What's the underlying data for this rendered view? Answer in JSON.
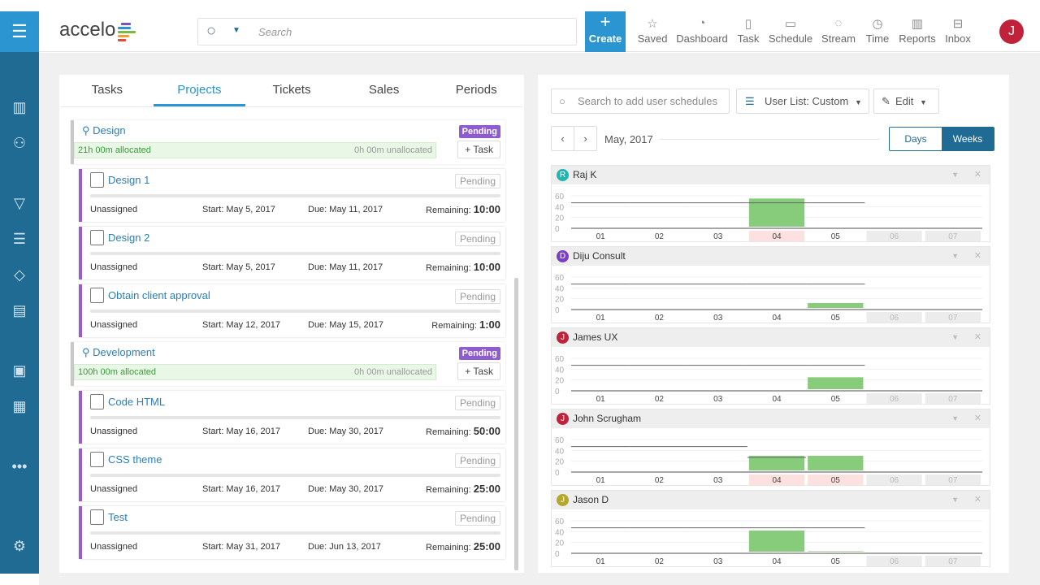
{
  "header": {
    "logo": "accelo",
    "search_placeholder": "Search",
    "create_label": "Create",
    "nav": [
      {
        "label": "Saved",
        "icon": "star-icon",
        "glyph": "☆"
      },
      {
        "label": "Dashboard",
        "icon": "gauge-icon",
        "glyph": "◔"
      },
      {
        "label": "Task",
        "icon": "clipboard-icon",
        "glyph": "▯"
      },
      {
        "label": "Schedule",
        "icon": "calendar-icon",
        "glyph": "▭"
      },
      {
        "label": "Stream",
        "icon": "chat-icon",
        "glyph": "◌"
      },
      {
        "label": "Time",
        "icon": "clock-icon",
        "glyph": "◷"
      },
      {
        "label": "Reports",
        "icon": "reports-icon",
        "glyph": "▥"
      },
      {
        "label": "Inbox",
        "icon": "inbox-icon",
        "glyph": "⊟"
      }
    ],
    "avatar": "J"
  },
  "left": {
    "tabs": [
      "Tasks",
      "Projects",
      "Tickets",
      "Sales",
      "Periods"
    ],
    "active_tab": "Projects",
    "items": [
      {
        "type": "project",
        "title": "Design",
        "status": "Pending",
        "allocated": "21h 00m allocated",
        "unallocated": "0h 00m unallocated",
        "add": "+ Task"
      },
      {
        "type": "task",
        "title": "Design 1",
        "status": "Pending",
        "assignee": "Unassigned",
        "start": "Start: May 5, 2017",
        "due": "Due: May 11, 2017",
        "remaining_label": "Remaining:",
        "remaining": "10:00"
      },
      {
        "type": "task",
        "title": "Design 2",
        "status": "Pending",
        "assignee": "Unassigned",
        "start": "Start: May 5, 2017",
        "due": "Due: May 11, 2017",
        "remaining_label": "Remaining:",
        "remaining": "10:00"
      },
      {
        "type": "task",
        "title": "Obtain client approval",
        "status": "Pending",
        "assignee": "Unassigned",
        "start": "Start: May 12, 2017",
        "due": "Due: May 15, 2017",
        "remaining_label": "Remaining:",
        "remaining": "1:00"
      },
      {
        "type": "project",
        "title": "Development",
        "status": "Pending",
        "allocated": "100h 00m allocated",
        "unallocated": "0h 00m unallocated",
        "add": "+ Task"
      },
      {
        "type": "task",
        "title": "Code HTML",
        "status": "Pending",
        "assignee": "Unassigned",
        "start": "Start: May 16, 2017",
        "due": "Due: May 30, 2017",
        "remaining_label": "Remaining:",
        "remaining": "50:00"
      },
      {
        "type": "task",
        "title": "CSS theme",
        "status": "Pending",
        "assignee": "Unassigned",
        "start": "Start: May 16, 2017",
        "due": "Due: May 30, 2017",
        "remaining_label": "Remaining:",
        "remaining": "25:00"
      },
      {
        "type": "task",
        "title": "Test",
        "status": "Pending",
        "assignee": "Unassigned",
        "start": "Start: May 31, 2017",
        "due": "Due: Jun 13, 2017",
        "remaining_label": "Remaining:",
        "remaining": "25:00"
      }
    ]
  },
  "right": {
    "search_placeholder": "Search to add user schedules",
    "user_list": "User List: Custom",
    "edit": "Edit",
    "month": "May, 2017",
    "days": "Days",
    "weeks": "Weeks",
    "active_view": "Weeks"
  },
  "chart_data": {
    "type": "bar",
    "weeks": [
      "01",
      "02",
      "03",
      "04",
      "05",
      "06",
      "07"
    ],
    "yticks": [
      0,
      20,
      40,
      60
    ],
    "ylim": [
      0,
      60
    ],
    "users": [
      {
        "name": "Raj K",
        "initial": "R",
        "color": "#1fb5b0",
        "hours": [
          0,
          0,
          0,
          55,
          0,
          null,
          null
        ],
        "capacity": [
          47,
          47,
          47,
          47,
          47,
          null,
          null
        ],
        "over_weeks": [
          "04"
        ]
      },
      {
        "name": "Diju Consult",
        "initial": "D",
        "color": "#7b3fc4",
        "hours": [
          0,
          0,
          0,
          0,
          12,
          null,
          null
        ],
        "capacity": [
          47,
          47,
          47,
          47,
          47,
          null,
          null
        ],
        "over_weeks": []
      },
      {
        "name": "James UX",
        "initial": "J",
        "color": "#c0223b",
        "hours": [
          0,
          0,
          0,
          0,
          25,
          null,
          null
        ],
        "capacity": [
          47,
          47,
          47,
          47,
          47,
          null,
          null
        ],
        "over_weeks": []
      },
      {
        "name": "John Scrugham",
        "initial": "J",
        "color": "#c0223b",
        "hours": [
          0,
          0,
          0,
          30,
          30,
          null,
          null
        ],
        "capacity": [
          47,
          47,
          47,
          27,
          null,
          null,
          null
        ],
        "over_weeks": [
          "04",
          "05"
        ]
      },
      {
        "name": "Jason D",
        "initial": "J",
        "color": "#b5a72a",
        "hours": [
          0,
          0,
          0,
          42,
          4,
          null,
          null
        ],
        "capacity": [
          47,
          47,
          47,
          47,
          47,
          null,
          null
        ],
        "over_weeks": []
      }
    ]
  }
}
